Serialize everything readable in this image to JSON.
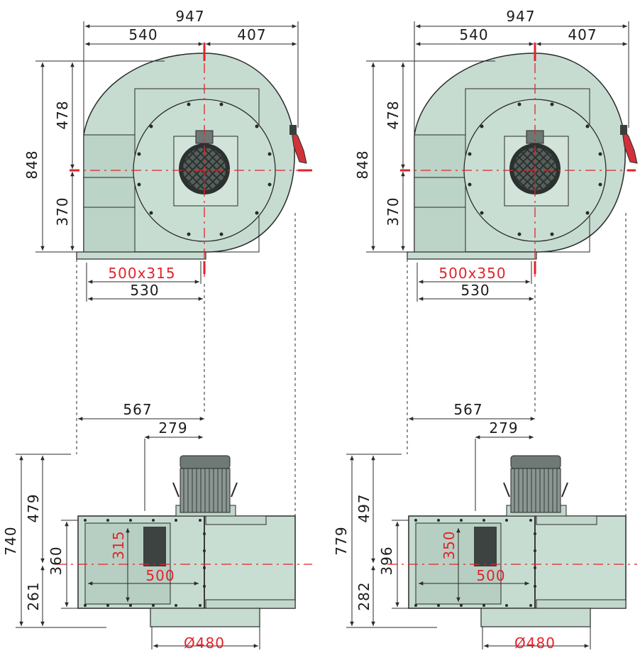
{
  "colors": {
    "housing": "#c6dcd1",
    "housing_shade": "#b3cbbf",
    "line": "#2a2a2a",
    "dim_text": "#1b1b1b",
    "accent_red": "#e1232b",
    "motor": "#7f8a86"
  },
  "variants": [
    {
      "front": {
        "overall_width": "947",
        "left_width": "540",
        "right_width": "407",
        "overall_height": "848",
        "upper_height": "478",
        "lower_height": "370",
        "outlet_size": "500x315",
        "base_width": "530"
      },
      "side": {
        "offset_a": "567",
        "offset_b": "279",
        "overall_height": "740",
        "upper_height": "479",
        "mid_height": "360",
        "lower_height": "261",
        "inlet_height": "315",
        "inlet_width": "500",
        "flange_diameter": "Ø480"
      }
    },
    {
      "front": {
        "overall_width": "947",
        "left_width": "540",
        "right_width": "407",
        "overall_height": "848",
        "upper_height": "478",
        "lower_height": "370",
        "outlet_size": "500x350",
        "base_width": "530"
      },
      "side": {
        "offset_a": "567",
        "offset_b": "279",
        "overall_height": "779",
        "upper_height": "497",
        "mid_height": "396",
        "lower_height": "282",
        "inlet_height": "350",
        "inlet_width": "500",
        "flange_diameter": "Ø480"
      }
    }
  ]
}
